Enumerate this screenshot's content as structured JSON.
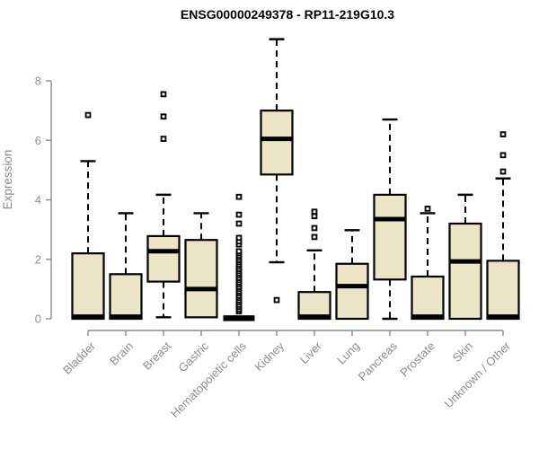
{
  "title": "ENSG00000249378 - RP11-219G10.3",
  "chart_data": {
    "type": "boxplot",
    "title": "ENSG00000249378 - RP11-219G10.3",
    "xlabel": "",
    "ylabel": "Expression",
    "ylim": [
      0,
      9.6
    ],
    "yticks": [
      0,
      2,
      4,
      6,
      8
    ],
    "grid": false,
    "legend": "none",
    "categories": [
      "Bladder",
      "Brain",
      "Breast",
      "Gastric",
      "Hematopoietic cells",
      "Kidney",
      "Liver",
      "Lung",
      "Pancreas",
      "Prostate",
      "Skin",
      "Unknown / Other"
    ],
    "boxes": [
      {
        "category": "Bladder",
        "q1": 0,
        "median": 0.07,
        "q3": 2.2,
        "whisker_low": 0,
        "whisker_high": 5.3,
        "outliers": [
          6.85
        ]
      },
      {
        "category": "Brain",
        "q1": 0,
        "median": 0.07,
        "q3": 1.5,
        "whisker_low": 0,
        "whisker_high": 3.55,
        "outliers": []
      },
      {
        "category": "Breast",
        "q1": 1.25,
        "median": 2.27,
        "q3": 2.78,
        "whisker_low": 0.05,
        "whisker_high": 4.17,
        "outliers": [
          6.05,
          6.8,
          7.55
        ]
      },
      {
        "category": "Gastric",
        "q1": 0.05,
        "median": 1.0,
        "q3": 2.65,
        "whisker_low": 0.05,
        "whisker_high": 3.55,
        "outliers": []
      },
      {
        "category": "Hematopoietic cells",
        "collapsed": true,
        "q1": 0,
        "median": 0.02,
        "q3": 0.05,
        "whisker_low": 0,
        "whisker_high": 0.05,
        "outliers": [
          0.25,
          0.32,
          0.4,
          0.47,
          0.55,
          0.62,
          0.7,
          0.77,
          0.85,
          0.92,
          1.0,
          1.07,
          1.15,
          1.22,
          1.3,
          1.37,
          1.45,
          1.52,
          1.6,
          1.67,
          1.75,
          1.82,
          1.9,
          1.97,
          2.05,
          2.12,
          2.2,
          2.27,
          2.5,
          2.6,
          2.72,
          3.2,
          3.5,
          4.1
        ]
      },
      {
        "category": "Kidney",
        "q1": 4.85,
        "median": 6.05,
        "q3": 7.0,
        "whisker_low": 1.9,
        "whisker_high": 9.4,
        "outliers": [
          0.63
        ]
      },
      {
        "category": "Liver",
        "q1": 0,
        "median": 0.07,
        "q3": 0.9,
        "whisker_low": 0,
        "whisker_high": 2.3,
        "outliers": [
          2.75,
          3.05,
          3.45,
          3.6
        ]
      },
      {
        "category": "Lung",
        "q1": 0,
        "median": 1.1,
        "q3": 1.85,
        "whisker_low": 0,
        "whisker_high": 2.98,
        "outliers": []
      },
      {
        "category": "Pancreas",
        "q1": 1.32,
        "median": 3.35,
        "q3": 4.17,
        "whisker_low": 0,
        "whisker_high": 6.7,
        "outliers": []
      },
      {
        "category": "Prostate",
        "q1": 0,
        "median": 0.07,
        "q3": 1.42,
        "whisker_low": 0,
        "whisker_high": 3.55,
        "outliers": [
          3.7
        ]
      },
      {
        "category": "Skin",
        "q1": 0,
        "median": 1.93,
        "q3": 3.2,
        "whisker_low": 0,
        "whisker_high": 4.17,
        "outliers": []
      },
      {
        "category": "Unknown / Other",
        "q1": 0,
        "median": 0.07,
        "q3": 1.95,
        "whisker_low": 0,
        "whisker_high": 4.72,
        "outliers": [
          4.95,
          5.5,
          6.2
        ]
      }
    ],
    "colors": {
      "box_fill": "#ece4c6",
      "box_border": "#000000",
      "median": "#000000",
      "whisker": "#000000",
      "outlier": "#000000",
      "axis": "#8c8c8c",
      "tick_label": "#8c8c8c",
      "title": "#000000",
      "background": "#ffffff"
    }
  }
}
